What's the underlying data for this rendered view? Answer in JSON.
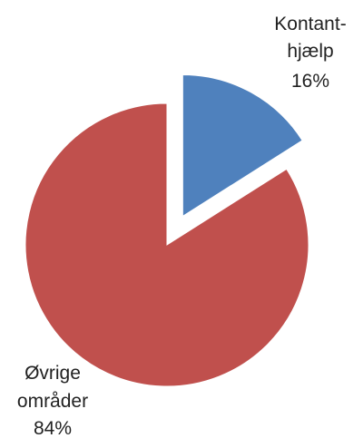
{
  "chart_data": {
    "type": "pie",
    "exploded": true,
    "slices": [
      {
        "label_lines": [
          "Kontant-",
          "hjælp"
        ],
        "value": 16,
        "value_label": "16%",
        "color": "#4f81bd"
      },
      {
        "label_lines": [
          "Øvrige",
          "områder"
        ],
        "value": 84,
        "value_label": "84%",
        "color": "#c0504d"
      }
    ]
  }
}
